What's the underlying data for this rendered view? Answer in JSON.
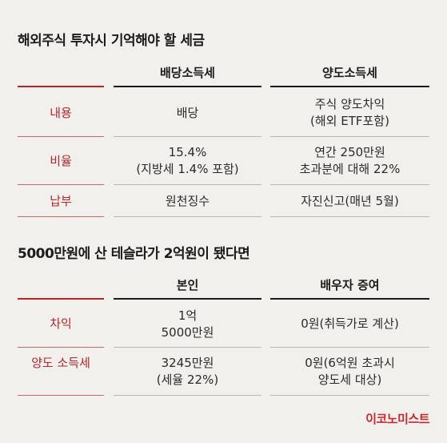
{
  "table1": {
    "title": "해외주식 투자시 기억해야 할 세금",
    "headers": [
      "배당소득세",
      "양도소득세"
    ],
    "rows": [
      {
        "label": "내용",
        "col1": "배당",
        "col2": "주식 양도차익\n(해외 ETF포함)"
      },
      {
        "label": "비율",
        "col1": "15.4%\n(지방세 1.4% 포함)",
        "col2": "연간 250만원\n초과분에 대해 22%"
      },
      {
        "label": "납부",
        "col1": "원천징수",
        "col2": "자진신고(매년 5월)"
      }
    ]
  },
  "table2": {
    "title": "5000만원에 산 테슬라가 2억원이 됐다면",
    "headers": [
      "본인",
      "배우자 증여"
    ],
    "rows": [
      {
        "label": "차익",
        "col1": "1억\n5000만원",
        "col2": "0원(취득가로 계산)"
      },
      {
        "label": "양도\n소득세",
        "col1": "3245만원\n(세율 22%)",
        "col2": "0원(6억원 초과시\n양도세 대상)"
      }
    ]
  },
  "brand": "이코노미스트",
  "colors": {
    "background": "#f2f0ec",
    "accent_red": "#b5252c",
    "text": "#222222"
  }
}
